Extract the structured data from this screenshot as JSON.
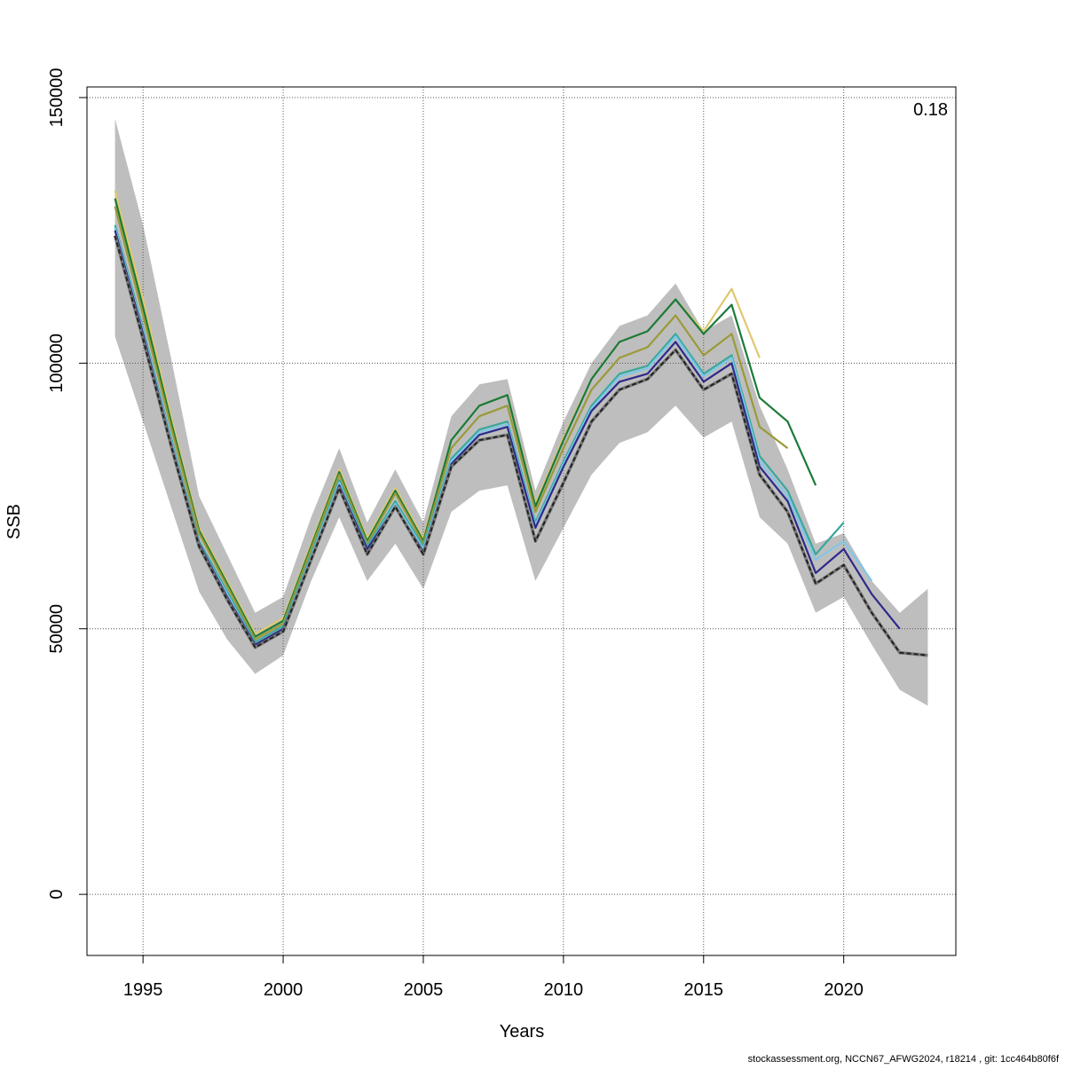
{
  "chart_data": {
    "type": "line",
    "title": "",
    "xlabel": "Years",
    "ylabel": "SSB",
    "annotation": "0.18",
    "footer": "stockassessment.org, NCCN67_AFWG2024, r18214 , git: 1cc464b80f6f",
    "xlim": [
      1993,
      2024
    ],
    "ylim": [
      -11500,
      152000
    ],
    "x_ticks": [
      1995,
      2000,
      2005,
      2010,
      2015,
      2020
    ],
    "x_tick_labels": [
      "1995",
      "2000",
      "2005",
      "2010",
      "2015",
      "2020"
    ],
    "y_ticks": [
      0,
      50000,
      100000,
      150000
    ],
    "y_tick_labels": [
      "0",
      "50000",
      "100000",
      "150000"
    ],
    "grid": true,
    "band": {
      "x": [
        1994,
        1995,
        1996,
        1997,
        1998,
        1999,
        2000,
        2001,
        2002,
        2003,
        2004,
        2005,
        2006,
        2007,
        2008,
        2009,
        2010,
        2011,
        2012,
        2013,
        2014,
        2015,
        2016,
        2017,
        2018,
        2019,
        2020,
        2021,
        2022,
        2023
      ],
      "upper": [
        146000,
        126000,
        101000,
        75000,
        64000,
        53000,
        56000,
        71000,
        84000,
        70000,
        80000,
        70000,
        90000,
        96000,
        97000,
        76000,
        89000,
        100000,
        107000,
        109000,
        115000,
        106000,
        109000,
        92000,
        80000,
        66000,
        68000,
        59000,
        53000,
        57500
      ],
      "lower": [
        105000,
        89000,
        73000,
        57000,
        48000,
        41500,
        45000,
        59000,
        71000,
        59000,
        66000,
        57500,
        72000,
        76000,
        77000,
        59000,
        69000,
        79000,
        85000,
        87000,
        92000,
        86000,
        89000,
        71000,
        66000,
        53000,
        56000,
        47000,
        38500,
        35500
      ]
    },
    "series": [
      {
        "color": "#e0c872",
        "x": [
          1994,
          1995,
          1996,
          1997,
          1998,
          1999,
          2000,
          2001,
          2002,
          2003,
          2004,
          2005,
          2006,
          2007,
          2008,
          2009,
          2010,
          2011,
          2012,
          2013,
          2014,
          2015,
          2016,
          2017
        ],
        "values": [
          132500,
          112000,
          90000,
          69000,
          59000,
          49000,
          52000,
          66000,
          80000,
          67000,
          76500,
          67000,
          85500,
          92000,
          94000,
          73500,
          86000,
          97000,
          104000,
          106000,
          112000,
          106000,
          114000,
          101000
        ]
      },
      {
        "color": "#1a7a3a",
        "x": [
          1994,
          1995,
          1996,
          1997,
          1998,
          1999,
          2000,
          2001,
          2002,
          2003,
          2004,
          2005,
          2006,
          2007,
          2008,
          2009,
          2010,
          2011,
          2012,
          2013,
          2014,
          2015,
          2016,
          2017,
          2018,
          2019
        ],
        "values": [
          131000,
          110500,
          89000,
          68500,
          58500,
          48500,
          51500,
          65500,
          79500,
          66500,
          76000,
          66500,
          85500,
          92000,
          94000,
          73000,
          85500,
          97000,
          104000,
          106000,
          112000,
          105500,
          111000,
          93500,
          89000,
          77000
        ]
      },
      {
        "color": "#9a9a38",
        "x": [
          1994,
          1995,
          1996,
          1997,
          1998,
          1999,
          2000,
          2001,
          2002,
          2003,
          2004,
          2005,
          2006,
          2007,
          2008,
          2009,
          2010,
          2011,
          2012,
          2013,
          2014,
          2015,
          2016,
          2017,
          2018
        ],
        "values": [
          129500,
          109000,
          88000,
          68000,
          58000,
          48000,
          51000,
          65000,
          79000,
          66000,
          75500,
          66000,
          84000,
          90000,
          92000,
          72000,
          84000,
          95000,
          101000,
          103000,
          109000,
          101500,
          105500,
          88000,
          84000
        ]
      },
      {
        "color": "#3aa89a",
        "x": [
          1994,
          1995,
          1996,
          1997,
          1998,
          1999,
          2000,
          2001,
          2002,
          2003,
          2004,
          2005,
          2006,
          2007,
          2008,
          2009,
          2010,
          2011,
          2012,
          2013,
          2014,
          2015,
          2016,
          2017,
          2018,
          2019,
          2020
        ],
        "values": [
          126000,
          106500,
          86000,
          66500,
          57000,
          47500,
          50500,
          64000,
          78000,
          65500,
          74000,
          65500,
          82000,
          87500,
          89000,
          70000,
          81500,
          92000,
          98000,
          99500,
          105500,
          98000,
          101500,
          82500,
          76000,
          64000,
          70000
        ]
      },
      {
        "color": "#7ec8e8",
        "x": [
          1994,
          1995,
          1996,
          1997,
          1998,
          1999,
          2000,
          2001,
          2002,
          2003,
          2004,
          2005,
          2006,
          2007,
          2008,
          2009,
          2010,
          2011,
          2012,
          2013,
          2014,
          2015,
          2016,
          2017,
          2018,
          2019,
          2020,
          2021
        ],
        "values": [
          125500,
          106000,
          85500,
          66000,
          56500,
          47000,
          50000,
          63500,
          77500,
          65000,
          73500,
          65000,
          81500,
          87000,
          88500,
          69500,
          81000,
          91500,
          97500,
          99000,
          105000,
          97500,
          101000,
          81500,
          75000,
          63000,
          66500,
          59000
        ]
      },
      {
        "color": "#2e2a8a",
        "x": [
          1994,
          1995,
          1996,
          1997,
          1998,
          1999,
          2000,
          2001,
          2002,
          2003,
          2004,
          2005,
          2006,
          2007,
          2008,
          2009,
          2010,
          2011,
          2012,
          2013,
          2014,
          2015,
          2016,
          2017,
          2018,
          2019,
          2020,
          2021,
          2022
        ],
        "values": [
          125000,
          105500,
          85000,
          66000,
          56000,
          47000,
          50000,
          63000,
          77000,
          65000,
          73000,
          64500,
          81000,
          86500,
          88000,
          69000,
          80500,
          91000,
          96500,
          98000,
          104000,
          96500,
          100000,
          80500,
          74000,
          60500,
          65000,
          56500,
          50000
        ]
      },
      {
        "color": "#222222",
        "dashed": true,
        "x": [
          1994,
          1995,
          1996,
          1997,
          1998,
          1999,
          2000,
          2001,
          2002,
          2003,
          2004,
          2005,
          2006,
          2007,
          2008,
          2009,
          2010,
          2011,
          2012,
          2013,
          2014,
          2015,
          2016,
          2017,
          2018,
          2019,
          2020,
          2021,
          2022,
          2023
        ],
        "values": [
          124000,
          104500,
          84500,
          65500,
          55500,
          46500,
          49500,
          63000,
          76500,
          64000,
          73000,
          64000,
          80500,
          85500,
          86500,
          66500,
          77500,
          89000,
          95000,
          97000,
          102500,
          95000,
          98000,
          79000,
          72000,
          58500,
          62000,
          53000,
          45500,
          45000
        ]
      }
    ]
  }
}
